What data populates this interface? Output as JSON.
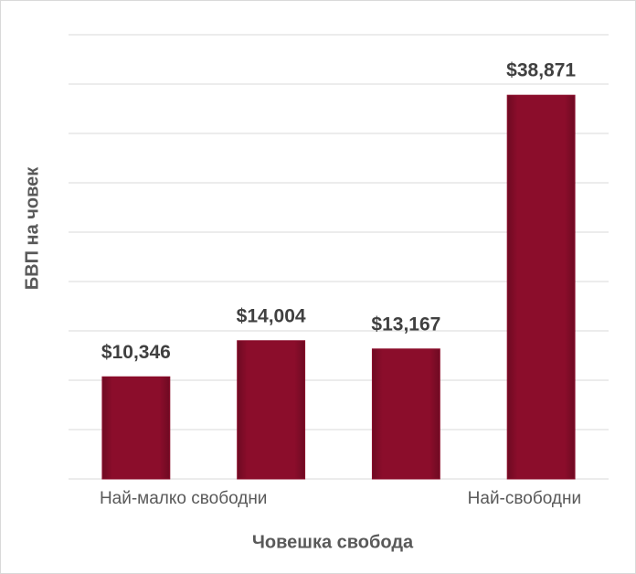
{
  "chart_data": {
    "type": "bar",
    "categories": [
      "Най-малко свободни",
      null,
      null,
      "Най-свободни"
    ],
    "values": [
      10346,
      14004,
      13167,
      38871
    ],
    "value_labels": [
      "$10,346",
      "$14,004",
      "$13,167",
      "$38,871"
    ],
    "color": "#8b0d2b",
    "ylabel": "БВП на човек",
    "xlabel": "Човешка свобода",
    "ylim": [
      0,
      45000
    ],
    "yticks": [
      0,
      5000,
      10000,
      15000,
      20000,
      25000,
      30000,
      35000,
      40000,
      45000
    ],
    "grid": true
  }
}
